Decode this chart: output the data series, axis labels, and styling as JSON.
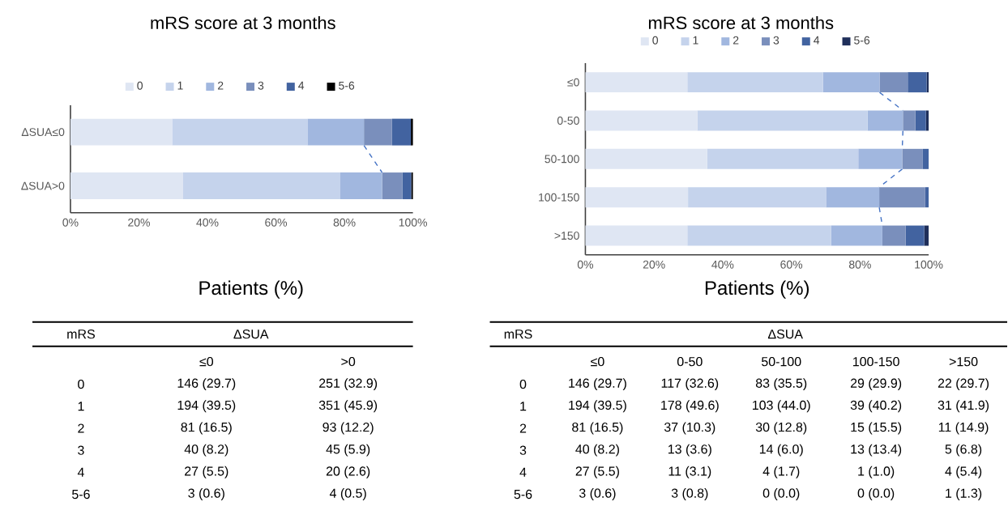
{
  "chart_data": [
    {
      "type": "bar",
      "orientation": "horizontal",
      "stacked": true,
      "title": "mRS score at 3 months",
      "xlabel": "Patients (%)",
      "categories": [
        "ΔSUA≤0",
        "ΔSUA>0"
      ],
      "xlim": [
        0,
        100
      ],
      "xticks": [
        {
          "value": 0,
          "label": "0%"
        },
        {
          "value": 20,
          "label": "20%"
        },
        {
          "value": 40,
          "label": "40%"
        },
        {
          "value": 60,
          "label": "60%"
        },
        {
          "value": 80,
          "label": "80%"
        },
        {
          "value": 100,
          "label": "100%"
        }
      ],
      "legend": "top",
      "annotations": [
        "mRS",
        "ΔSUA",
        "≤0",
        ">0",
        "146 (29.7)",
        "251 (32.9)",
        "194 (39.5)",
        "351 (45.9)",
        "81 (16.5)",
        "93 (12.2)",
        "40 (8.2)",
        "45 (5.9)",
        "27 (5.5)",
        "20 (2.6)",
        "3 (0.6)",
        "4 (0.5)"
      ],
      "series": [
        {
          "name": "0",
          "color": "#dfe6f3",
          "values": [
            29.7,
            32.9
          ]
        },
        {
          "name": "1",
          "color": "#c5d3ec",
          "values": [
            39.5,
            45.9
          ]
        },
        {
          "name": "2",
          "color": "#a1b7df",
          "values": [
            16.5,
            12.2
          ]
        },
        {
          "name": "3",
          "color": "#7a8fbc",
          "values": [
            8.2,
            5.9
          ]
        },
        {
          "name": "4",
          "color": "#4263a0",
          "values": [
            5.5,
            2.6
          ]
        },
        {
          "name": "5-6",
          "color": "#000000",
          "values": [
            0.6,
            0.5
          ]
        }
      ]
    },
    {
      "type": "bar",
      "orientation": "horizontal",
      "stacked": true,
      "title": "mRS score at 3 months",
      "xlabel": "Patients (%)",
      "categories": [
        "≤0",
        "0-50",
        "50-100",
        "100-150",
        ">150"
      ],
      "xlim": [
        0,
        100
      ],
      "xticks": [
        {
          "value": 0,
          "label": "0%"
        },
        {
          "value": 20,
          "label": "20%"
        },
        {
          "value": 40,
          "label": "40%"
        },
        {
          "value": 60,
          "label": "60%"
        },
        {
          "value": 80,
          "label": "80%"
        },
        {
          "value": 100,
          "label": "100%"
        }
      ],
      "legend": "top",
      "annotations": [
        "mRS",
        "ΔSUA",
        "≤0",
        "0-50",
        "50-100",
        "100-150",
        ">150",
        "146 (29.7)",
        "117 (32.6)",
        "83 (35.5)",
        "29 (29.9)",
        "22 (29.7)",
        "194 (39.5)",
        "178 (49.6)",
        "103 (44.0)",
        "39 (40.2)",
        "31 (41.9)",
        "81 (16.5)",
        "37 (10.3)",
        "30 (12.8)",
        "15 (15.5)",
        "11 (14.9)",
        "40 (8.2)",
        "13 (3.6)",
        "14 (6.0)",
        "13 (13.4)",
        "5 (6.8)",
        "27 (5.5)",
        "11 (3.1)",
        "4 (1.7)",
        "1 (1.0)",
        "4 (5.4)",
        "3 (0.6)",
        "3 (0.8)",
        "0 (0.0)",
        "0 (0.0)",
        "1 (1.3)"
      ],
      "series": [
        {
          "name": "0",
          "color": "#dfe6f3",
          "values": [
            29.7,
            32.6,
            35.5,
            29.9,
            29.7
          ]
        },
        {
          "name": "1",
          "color": "#c5d3ec",
          "values": [
            39.5,
            49.6,
            44.0,
            40.2,
            41.9
          ]
        },
        {
          "name": "2",
          "color": "#a1b7df",
          "values": [
            16.5,
            10.3,
            12.8,
            15.5,
            14.9
          ]
        },
        {
          "name": "3",
          "color": "#7a8fbc",
          "values": [
            8.2,
            3.6,
            6.0,
            13.4,
            6.8
          ]
        },
        {
          "name": "4",
          "color": "#4263a0",
          "values": [
            5.5,
            3.1,
            1.7,
            1.0,
            5.4
          ]
        },
        {
          "name": "5-6",
          "color": "#1f2f5a",
          "values": [
            0.6,
            0.8,
            0.0,
            0.0,
            1.3
          ]
        }
      ]
    }
  ]
}
